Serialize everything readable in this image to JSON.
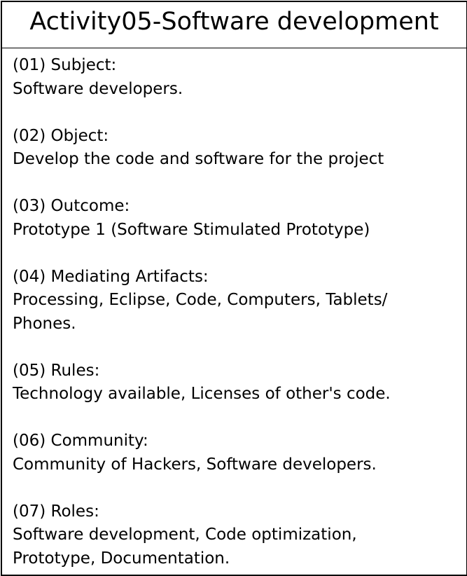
{
  "title": "Activity05-Software development",
  "sections": [
    {
      "label": "(01) Subject:",
      "value": "Software developers."
    },
    {
      "label": "(02) Object:",
      "value": "Develop the code and software for the project"
    },
    {
      "label": "(03) Outcome:",
      "value": "Prototype 1 (Software Stimulated Prototype)"
    },
    {
      "label": "(04) Mediating Artifacts:",
      "value": "Processing, Eclipse, Code, Computers, Tablets/\nPhones."
    },
    {
      "label": "(05) Rules:",
      "value": "Technology available, Licenses of other's code."
    },
    {
      "label": "(06) Community:",
      "value": "Community of Hackers, Software developers."
    },
    {
      "label": "(07) Roles:",
      "value": "Software development, Code optimization,\nPrototype, Documentation."
    }
  ]
}
